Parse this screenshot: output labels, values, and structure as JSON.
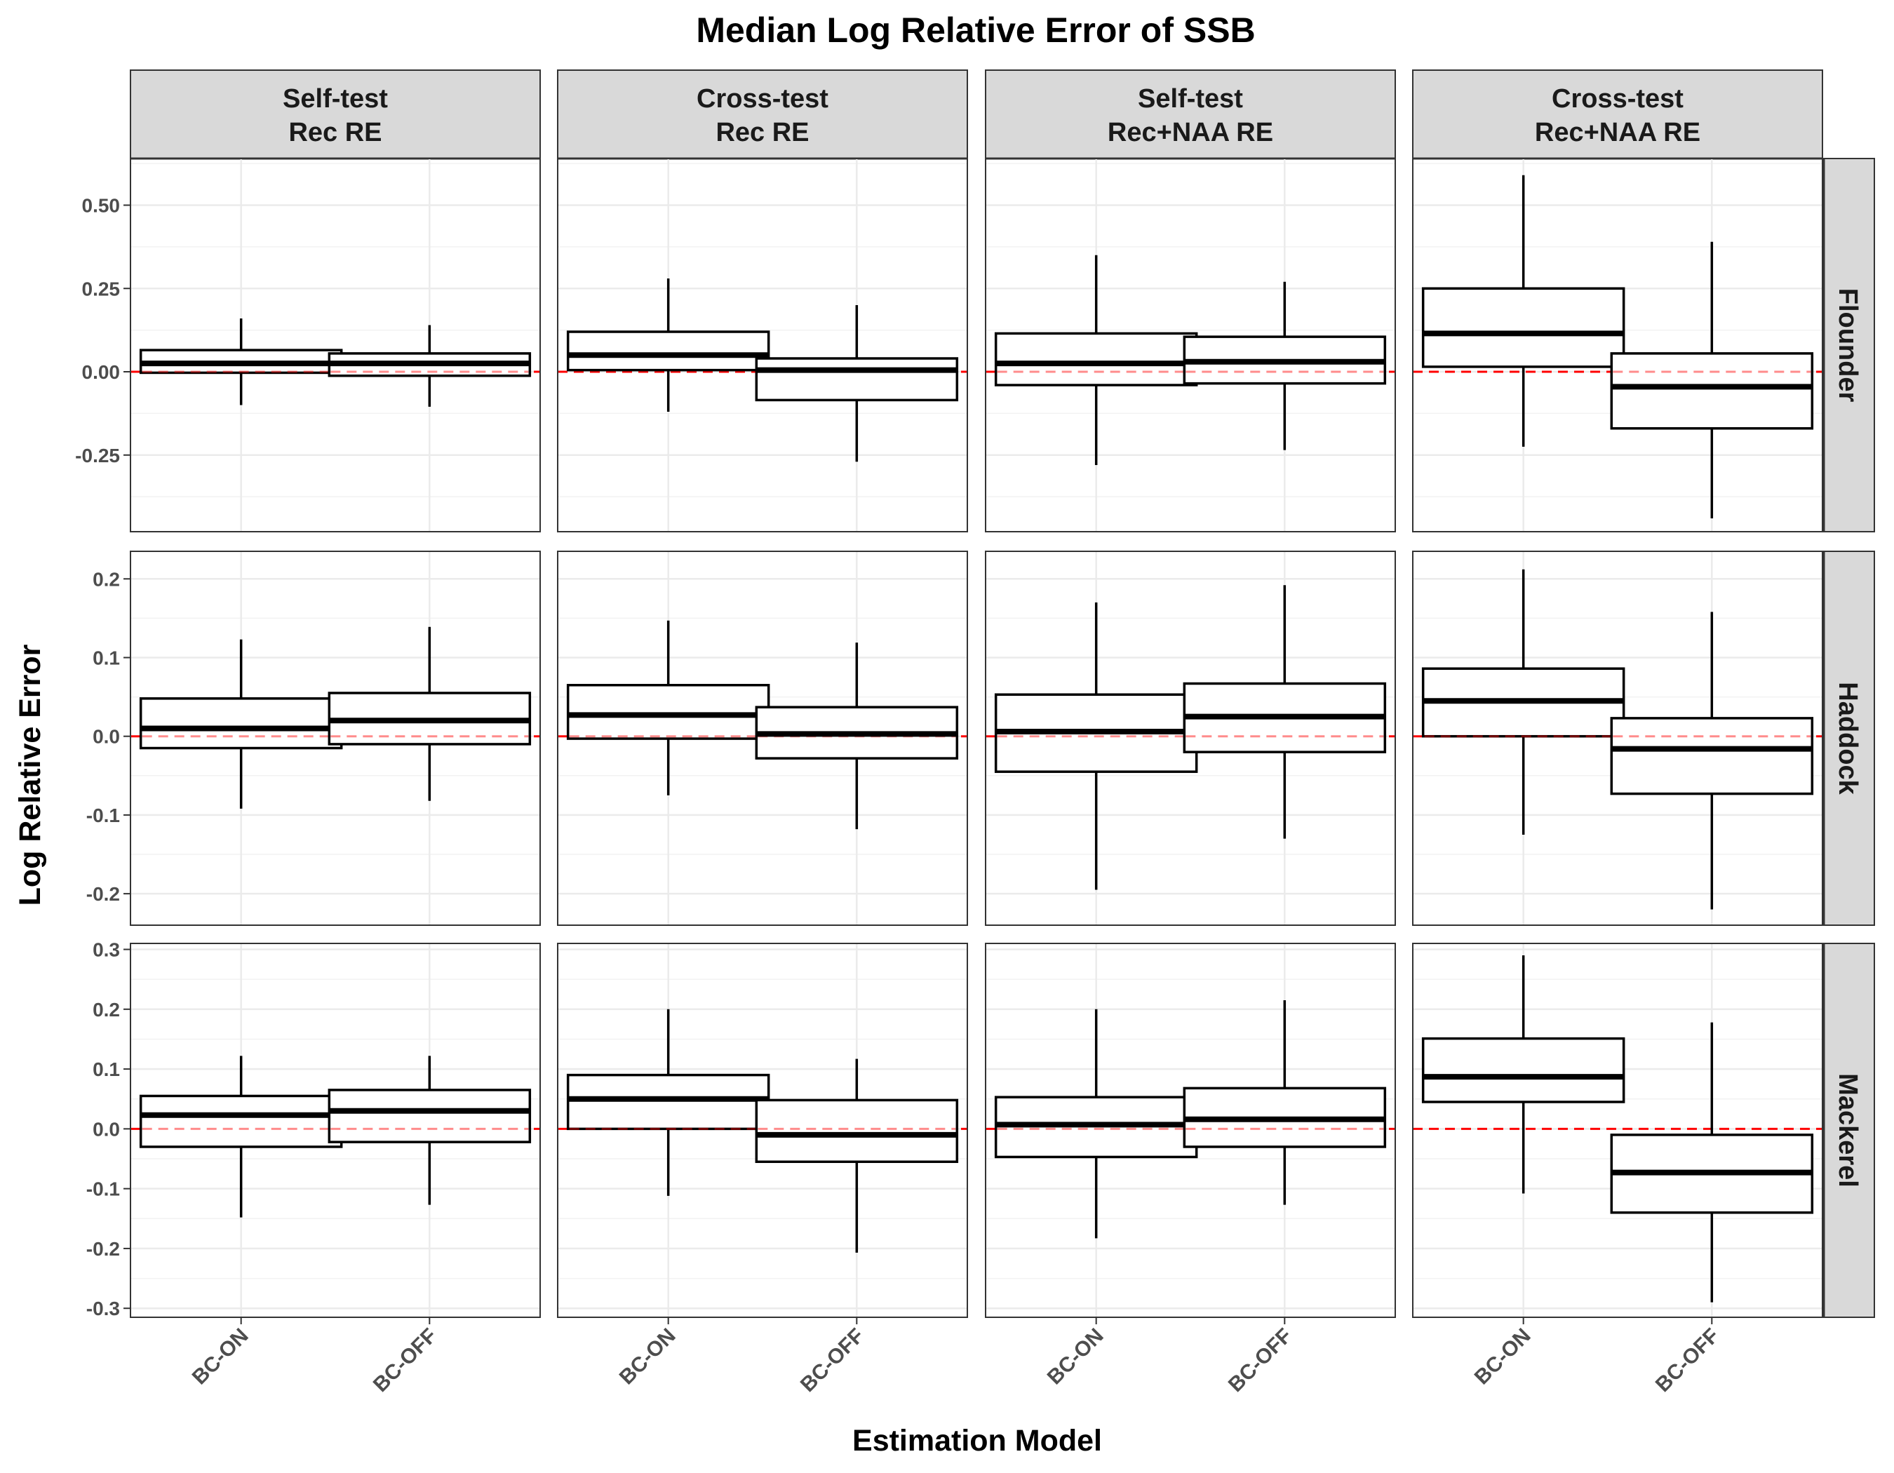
{
  "chart_data": {
    "type": "box",
    "title": "Median Log Relative Error of SSB",
    "xlabel": "Estimation Model",
    "ylabel": "Log Relative Error",
    "categories": [
      "BC-ON",
      "BC-OFF"
    ],
    "columns": [
      {
        "line1": "Self-test",
        "line2": "Rec RE"
      },
      {
        "line1": "Cross-test",
        "line2": "Rec RE"
      },
      {
        "line1": "Self-test",
        "line2": "Rec+NAA RE"
      },
      {
        "line1": "Cross-test",
        "line2": "Rec+NAA RE"
      }
    ],
    "reference_line": {
      "y": 0,
      "color": "#ff0000",
      "style": "dashed"
    },
    "grid": true,
    "rows": [
      {
        "name": "Flounder",
        "ylim": [
          -0.48,
          0.64
        ],
        "ticks": [
          -0.25,
          0.0,
          0.25,
          0.5
        ],
        "tick_labels": [
          "-0.25",
          "0.00",
          "0.25",
          "0.50"
        ],
        "boxes": [
          [
            {
              "whisker_low": -0.1,
              "q1": -0.003,
              "median": 0.025,
              "q3": 0.065,
              "whisker_high": 0.16
            },
            {
              "whisker_low": -0.105,
              "q1": -0.012,
              "median": 0.025,
              "q3": 0.055,
              "whisker_high": 0.14
            }
          ],
          [
            {
              "whisker_low": -0.12,
              "q1": 0.005,
              "median": 0.05,
              "q3": 0.12,
              "whisker_high": 0.28
            },
            {
              "whisker_low": -0.27,
              "q1": -0.085,
              "median": 0.005,
              "q3": 0.04,
              "whisker_high": 0.2
            }
          ],
          [
            {
              "whisker_low": -0.28,
              "q1": -0.04,
              "median": 0.025,
              "q3": 0.115,
              "whisker_high": 0.35
            },
            {
              "whisker_low": -0.235,
              "q1": -0.035,
              "median": 0.03,
              "q3": 0.105,
              "whisker_high": 0.27
            }
          ],
          [
            {
              "whisker_low": -0.225,
              "q1": 0.015,
              "median": 0.115,
              "q3": 0.25,
              "whisker_high": 0.59
            },
            {
              "whisker_low": -0.44,
              "q1": -0.17,
              "median": -0.045,
              "q3": 0.055,
              "whisker_high": 0.39
            }
          ]
        ]
      },
      {
        "name": "Haddock",
        "ylim": [
          -0.24,
          0.235
        ],
        "ticks": [
          -0.2,
          -0.1,
          0.0,
          0.1,
          0.2
        ],
        "tick_labels": [
          "-0.2",
          "-0.1",
          "0.0",
          "0.1",
          "0.2"
        ],
        "boxes": [
          [
            {
              "whisker_low": -0.092,
              "q1": -0.015,
              "median": 0.01,
              "q3": 0.048,
              "whisker_high": 0.123
            },
            {
              "whisker_low": -0.082,
              "q1": -0.01,
              "median": 0.02,
              "q3": 0.055,
              "whisker_high": 0.139
            }
          ],
          [
            {
              "whisker_low": -0.075,
              "q1": -0.003,
              "median": 0.027,
              "q3": 0.065,
              "whisker_high": 0.147
            },
            {
              "whisker_low": -0.118,
              "q1": -0.028,
              "median": 0.003,
              "q3": 0.037,
              "whisker_high": 0.119
            }
          ],
          [
            {
              "whisker_low": -0.195,
              "q1": -0.045,
              "median": 0.006,
              "q3": 0.053,
              "whisker_high": 0.17
            },
            {
              "whisker_low": -0.13,
              "q1": -0.02,
              "median": 0.025,
              "q3": 0.067,
              "whisker_high": 0.192
            }
          ],
          [
            {
              "whisker_low": -0.125,
              "q1": 0.0,
              "median": 0.045,
              "q3": 0.086,
              "whisker_high": 0.212
            },
            {
              "whisker_low": -0.22,
              "q1": -0.073,
              "median": -0.016,
              "q3": 0.023,
              "whisker_high": 0.158
            }
          ]
        ]
      },
      {
        "name": "Mackerel",
        "ylim": [
          -0.315,
          0.31
        ],
        "ticks": [
          -0.3,
          -0.2,
          -0.1,
          0.0,
          0.1,
          0.2,
          0.3
        ],
        "tick_labels": [
          "-0.3",
          "-0.2",
          "-0.1",
          "0.0",
          "0.1",
          "0.2",
          "0.3"
        ],
        "boxes": [
          [
            {
              "whisker_low": -0.148,
              "q1": -0.03,
              "median": 0.023,
              "q3": 0.055,
              "whisker_high": 0.122
            },
            {
              "whisker_low": -0.127,
              "q1": -0.022,
              "median": 0.03,
              "q3": 0.065,
              "whisker_high": 0.122
            }
          ],
          [
            {
              "whisker_low": -0.112,
              "q1": 0.0,
              "median": 0.05,
              "q3": 0.09,
              "whisker_high": 0.2
            },
            {
              "whisker_low": -0.207,
              "q1": -0.055,
              "median": -0.01,
              "q3": 0.048,
              "whisker_high": 0.117
            }
          ],
          [
            {
              "whisker_low": -0.183,
              "q1": -0.047,
              "median": 0.007,
              "q3": 0.053,
              "whisker_high": 0.2
            },
            {
              "whisker_low": -0.127,
              "q1": -0.03,
              "median": 0.016,
              "q3": 0.068,
              "whisker_high": 0.215
            }
          ],
          [
            {
              "whisker_low": -0.108,
              "q1": 0.045,
              "median": 0.087,
              "q3": 0.151,
              "whisker_high": 0.29
            },
            {
              "whisker_low": -0.29,
              "q1": -0.14,
              "median": -0.073,
              "q3": -0.01,
              "whisker_high": 0.178
            }
          ]
        ]
      }
    ]
  }
}
